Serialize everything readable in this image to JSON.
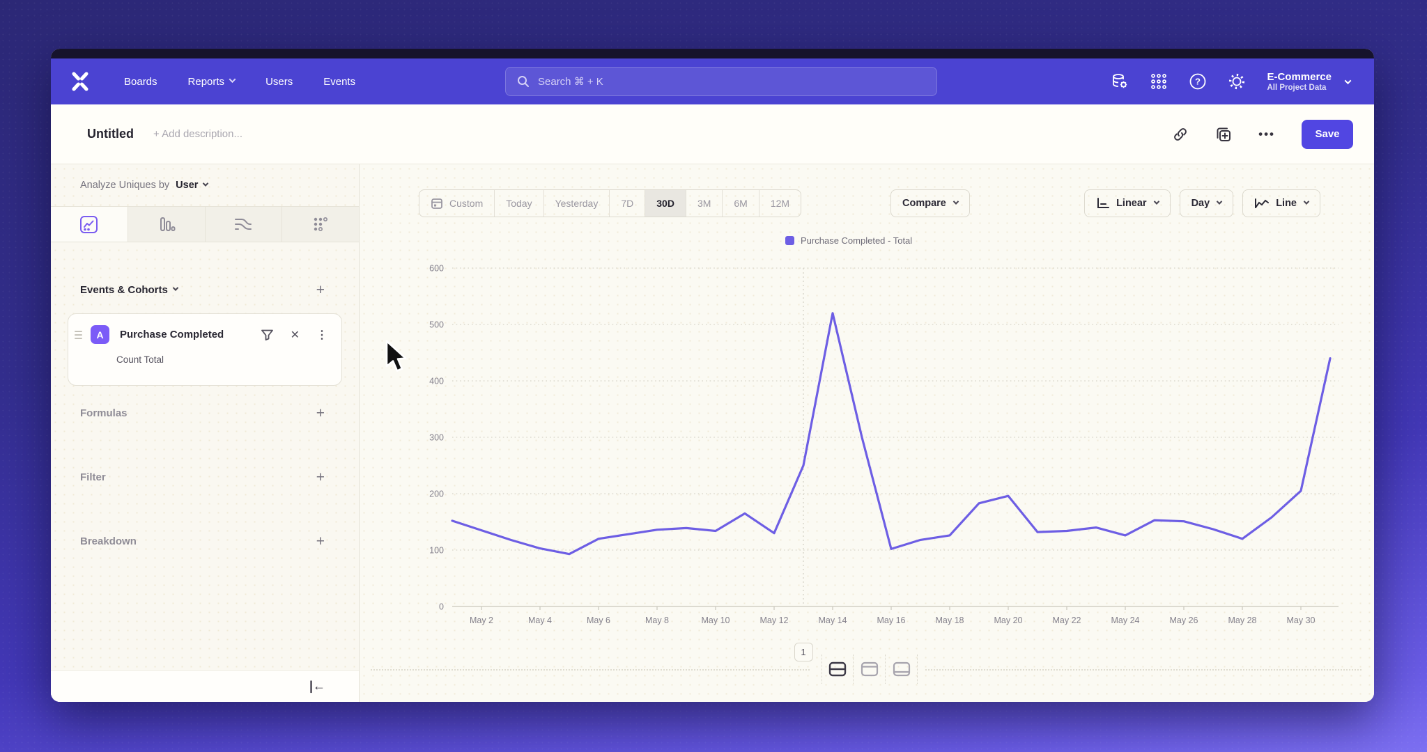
{
  "nav": {
    "logo": "mixpanel-logo",
    "items": [
      {
        "label": "Boards",
        "chevron": false
      },
      {
        "label": "Reports",
        "chevron": true
      },
      {
        "label": "Users",
        "chevron": false
      },
      {
        "label": "Events",
        "chevron": false
      }
    ],
    "search": {
      "placeholder": "Search  ⌘ + K"
    },
    "workspace": {
      "name": "E-Commerce",
      "subtitle": "All Project Data"
    }
  },
  "header": {
    "title": "Untitled",
    "description_placeholder": "+ Add description...",
    "save_label": "Save"
  },
  "sidebar": {
    "analyze": {
      "prefix": "Analyze Uniques by",
      "value": "User"
    },
    "tabs": [
      {
        "name": "insights-line-tab",
        "selected": true
      },
      {
        "name": "bar-chart-tab",
        "selected": false
      },
      {
        "name": "flows-tab",
        "selected": false
      },
      {
        "name": "retention-tab",
        "selected": false
      }
    ],
    "events_section": {
      "label": "Events & Cohorts",
      "add_label": "+"
    },
    "event_card": {
      "badge": "A",
      "title": "Purchase Completed",
      "subtitle": "Count Total"
    },
    "rows": [
      {
        "label": "Formulas",
        "add_label": "+"
      },
      {
        "label": "Filter",
        "add_label": "+"
      },
      {
        "label": "Breakdown",
        "add_label": "+"
      }
    ]
  },
  "toolbar": {
    "ranges": [
      "Custom",
      "Today",
      "Yesterday",
      "7D",
      "30D",
      "3M",
      "6M",
      "12M"
    ],
    "selected_range": "30D",
    "compare_label": "Compare",
    "scale_label": "Linear",
    "interval_label": "Day",
    "chart_type_label": "Line"
  },
  "chart_data": {
    "type": "line",
    "title": "",
    "x": [
      "May 1",
      "May 2",
      "May 3",
      "May 4",
      "May 5",
      "May 6",
      "May 7",
      "May 8",
      "May 9",
      "May 10",
      "May 11",
      "May 12",
      "May 13",
      "May 14",
      "May 15",
      "May 16",
      "May 17",
      "May 18",
      "May 19",
      "May 20",
      "May 21",
      "May 22",
      "May 23",
      "May 24",
      "May 25",
      "May 26",
      "May 27",
      "May 28",
      "May 29",
      "May 30",
      "May 31"
    ],
    "x_tick_labels": [
      "May 2",
      "May 4",
      "May 6",
      "May 8",
      "May 10",
      "May 12",
      "May 14",
      "May 16",
      "May 18",
      "May 20",
      "May 22",
      "May 24",
      "May 26",
      "May 28",
      "May 30"
    ],
    "series": [
      {
        "name": "Purchase Completed - Total",
        "color": "#6d5ee4",
        "values": [
          152,
          135,
          118,
          103,
          93,
          120,
          128,
          136,
          139,
          134,
          165,
          130,
          250,
          520,
          300,
          102,
          118,
          126,
          183,
          196,
          132,
          134,
          140,
          126,
          153,
          151,
          137,
          120,
          158,
          205,
          440
        ]
      }
    ],
    "ylim": [
      0,
      600
    ],
    "yticks": [
      0,
      100,
      200,
      300,
      400,
      500,
      600
    ],
    "grid": "horizontal-dotted",
    "legend_position": "top-center",
    "annotation": {
      "x": "May 13",
      "label": "1"
    }
  },
  "footer": {
    "page_label": "1",
    "layout_buttons": [
      "split-horizontal",
      "panel-top",
      "panel-bottom"
    ],
    "active_layout": 0
  }
}
